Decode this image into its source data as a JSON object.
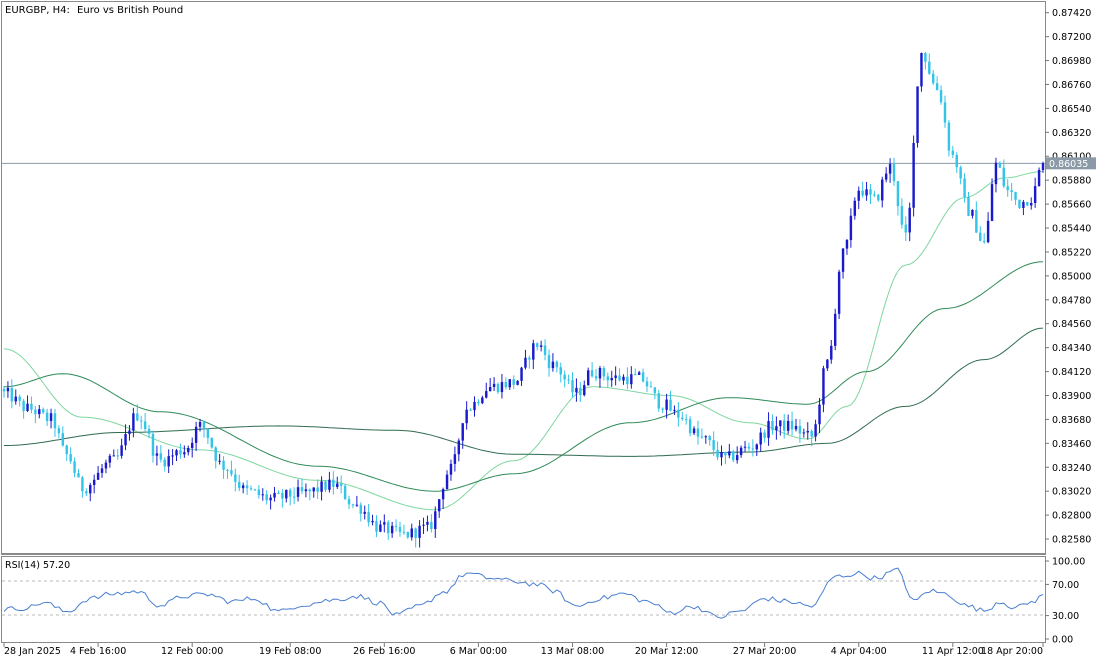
{
  "header": {
    "symbol": "EURGBP, H4:",
    "description": "Euro vs British Pound"
  },
  "price_axis": {
    "labels": [
      "0.87420",
      "0.87200",
      "0.86980",
      "0.86760",
      "0.86540",
      "0.86320",
      "0.86100",
      "0.85880",
      "0.85660",
      "0.85440",
      "0.85220",
      "0.85000",
      "0.84780",
      "0.84560",
      "0.84340",
      "0.84120",
      "0.83900",
      "0.83680",
      "0.83460",
      "0.83240",
      "0.83020",
      "0.82800",
      "0.82580"
    ],
    "current_price": "0.86035"
  },
  "rsi": {
    "title": "RSI(14) 57.20",
    "levels": [
      "100.00",
      "70.00",
      "30.00",
      "0.00"
    ]
  },
  "time_axis": {
    "labels": [
      "28 Jan 2025",
      "4 Feb 16:00",
      "12 Feb 00:00",
      "19 Feb 08:00",
      "26 Feb 16:00",
      "6 Mar 00:00",
      "13 Mar 08:00",
      "20 Mar 12:00",
      "27 Mar 20:00",
      "4 Apr 04:00",
      "11 Apr 12:00",
      "18 Apr 20:00"
    ]
  },
  "colors": {
    "bull": "#1a1acc",
    "bear": "#33c4e8",
    "ma_fast": "#7fd6a0",
    "ma_mid": "#2e8b57",
    "ma_slow": "#2f6b4f",
    "rsi_line": "#4a7fd0",
    "grid": "#c8c8c8"
  },
  "chart_data": [
    {
      "type": "candlestick",
      "title": "EURGBP, H4: Euro vs British Pound",
      "ylim": [
        0.8247,
        0.875
      ],
      "current_price": 0.86035,
      "price_waypoints": [
        {
          "i": 0,
          "p": 0.8392
        },
        {
          "i": 6,
          "p": 0.8378
        },
        {
          "i": 12,
          "p": 0.8368
        },
        {
          "i": 16,
          "p": 0.8335
        },
        {
          "i": 20,
          "p": 0.8305
        },
        {
          "i": 28,
          "p": 0.833
        },
        {
          "i": 34,
          "p": 0.8372
        },
        {
          "i": 40,
          "p": 0.833
        },
        {
          "i": 46,
          "p": 0.834
        },
        {
          "i": 50,
          "p": 0.8362
        },
        {
          "i": 56,
          "p": 0.8325
        },
        {
          "i": 62,
          "p": 0.8302
        },
        {
          "i": 68,
          "p": 0.8295
        },
        {
          "i": 76,
          "p": 0.83
        },
        {
          "i": 84,
          "p": 0.8308
        },
        {
          "i": 90,
          "p": 0.8288
        },
        {
          "i": 96,
          "p": 0.8268
        },
        {
          "i": 102,
          "p": 0.8262
        },
        {
          "i": 108,
          "p": 0.8268
        },
        {
          "i": 114,
          "p": 0.8322
        },
        {
          "i": 118,
          "p": 0.8378
        },
        {
          "i": 124,
          "p": 0.8398
        },
        {
          "i": 130,
          "p": 0.8402
        },
        {
          "i": 136,
          "p": 0.8437
        },
        {
          "i": 140,
          "p": 0.8418
        },
        {
          "i": 146,
          "p": 0.8392
        },
        {
          "i": 150,
          "p": 0.8412
        },
        {
          "i": 156,
          "p": 0.8406
        },
        {
          "i": 162,
          "p": 0.8406
        },
        {
          "i": 168,
          "p": 0.8382
        },
        {
          "i": 172,
          "p": 0.8372
        },
        {
          "i": 178,
          "p": 0.835
        },
        {
          "i": 184,
          "p": 0.8332
        },
        {
          "i": 190,
          "p": 0.8342
        },
        {
          "i": 196,
          "p": 0.8362
        },
        {
          "i": 200,
          "p": 0.8362
        },
        {
          "i": 206,
          "p": 0.8352
        },
        {
          "i": 210,
          "p": 0.842
        },
        {
          "i": 214,
          "p": 0.852
        },
        {
          "i": 218,
          "p": 0.858
        },
        {
          "i": 222,
          "p": 0.857
        },
        {
          "i": 226,
          "p": 0.86
        },
        {
          "i": 230,
          "p": 0.8535
        },
        {
          "i": 234,
          "p": 0.8705
        },
        {
          "i": 238,
          "p": 0.8672
        },
        {
          "i": 242,
          "p": 0.861
        },
        {
          "i": 246,
          "p": 0.856
        },
        {
          "i": 250,
          "p": 0.853
        },
        {
          "i": 253,
          "p": 0.8603
        },
        {
          "i": 256,
          "p": 0.8578
        },
        {
          "i": 259,
          "p": 0.8567
        },
        {
          "i": 262,
          "p": 0.8572
        },
        {
          "i": 265,
          "p": 0.8603
        }
      ],
      "ma_fast_waypoints": [
        {
          "i": 0,
          "p": 0.8433
        },
        {
          "i": 20,
          "p": 0.837
        },
        {
          "i": 50,
          "p": 0.834
        },
        {
          "i": 80,
          "p": 0.8312
        },
        {
          "i": 110,
          "p": 0.8285
        },
        {
          "i": 130,
          "p": 0.833
        },
        {
          "i": 150,
          "p": 0.8398
        },
        {
          "i": 170,
          "p": 0.839
        },
        {
          "i": 190,
          "p": 0.8365
        },
        {
          "i": 205,
          "p": 0.835
        },
        {
          "i": 215,
          "p": 0.838
        },
        {
          "i": 230,
          "p": 0.851
        },
        {
          "i": 245,
          "p": 0.8572
        },
        {
          "i": 255,
          "p": 0.859
        },
        {
          "i": 265,
          "p": 0.8596
        }
      ],
      "ma_mid_waypoints": [
        {
          "i": 0,
          "p": 0.8398
        },
        {
          "i": 15,
          "p": 0.841
        },
        {
          "i": 40,
          "p": 0.8375
        },
        {
          "i": 80,
          "p": 0.8325
        },
        {
          "i": 110,
          "p": 0.8302
        },
        {
          "i": 130,
          "p": 0.8318
        },
        {
          "i": 160,
          "p": 0.8365
        },
        {
          "i": 185,
          "p": 0.8388
        },
        {
          "i": 205,
          "p": 0.8382
        },
        {
          "i": 220,
          "p": 0.8412
        },
        {
          "i": 240,
          "p": 0.847
        },
        {
          "i": 265,
          "p": 0.8513
        }
      ],
      "ma_slow_waypoints": [
        {
          "i": 0,
          "p": 0.8344
        },
        {
          "i": 30,
          "p": 0.8356
        },
        {
          "i": 70,
          "p": 0.8362
        },
        {
          "i": 100,
          "p": 0.8358
        },
        {
          "i": 130,
          "p": 0.8336
        },
        {
          "i": 160,
          "p": 0.8334
        },
        {
          "i": 190,
          "p": 0.8338
        },
        {
          "i": 210,
          "p": 0.8346
        },
        {
          "i": 230,
          "p": 0.838
        },
        {
          "i": 250,
          "p": 0.8423
        },
        {
          "i": 265,
          "p": 0.8452
        }
      ]
    },
    {
      "type": "line",
      "title": "RSI(14) 57.20",
      "ylim": [
        0,
        100
      ],
      "levels": [
        30,
        70
      ],
      "rsi_waypoints": [
        {
          "i": 0,
          "v": 38
        },
        {
          "i": 6,
          "v": 40
        },
        {
          "i": 10,
          "v": 47
        },
        {
          "i": 16,
          "v": 35
        },
        {
          "i": 22,
          "v": 52
        },
        {
          "i": 28,
          "v": 58
        },
        {
          "i": 34,
          "v": 61
        },
        {
          "i": 40,
          "v": 43
        },
        {
          "i": 46,
          "v": 55
        },
        {
          "i": 52,
          "v": 57
        },
        {
          "i": 58,
          "v": 48
        },
        {
          "i": 64,
          "v": 52
        },
        {
          "i": 70,
          "v": 35
        },
        {
          "i": 76,
          "v": 44
        },
        {
          "i": 84,
          "v": 50
        },
        {
          "i": 90,
          "v": 55
        },
        {
          "i": 96,
          "v": 46
        },
        {
          "i": 100,
          "v": 30
        },
        {
          "i": 106,
          "v": 42
        },
        {
          "i": 112,
          "v": 60
        },
        {
          "i": 118,
          "v": 84
        },
        {
          "i": 124,
          "v": 78
        },
        {
          "i": 130,
          "v": 74
        },
        {
          "i": 136,
          "v": 70
        },
        {
          "i": 140,
          "v": 62
        },
        {
          "i": 146,
          "v": 42
        },
        {
          "i": 152,
          "v": 52
        },
        {
          "i": 158,
          "v": 58
        },
        {
          "i": 164,
          "v": 48
        },
        {
          "i": 170,
          "v": 34
        },
        {
          "i": 176,
          "v": 42
        },
        {
          "i": 182,
          "v": 28
        },
        {
          "i": 188,
          "v": 36
        },
        {
          "i": 194,
          "v": 52
        },
        {
          "i": 200,
          "v": 48
        },
        {
          "i": 206,
          "v": 42
        },
        {
          "i": 212,
          "v": 80
        },
        {
          "i": 218,
          "v": 84
        },
        {
          "i": 222,
          "v": 78
        },
        {
          "i": 228,
          "v": 88
        },
        {
          "i": 232,
          "v": 48
        },
        {
          "i": 236,
          "v": 62
        },
        {
          "i": 240,
          "v": 58
        },
        {
          "i": 246,
          "v": 42
        },
        {
          "i": 250,
          "v": 36
        },
        {
          "i": 254,
          "v": 48
        },
        {
          "i": 258,
          "v": 40
        },
        {
          "i": 262,
          "v": 47
        },
        {
          "i": 265,
          "v": 57
        }
      ]
    }
  ]
}
